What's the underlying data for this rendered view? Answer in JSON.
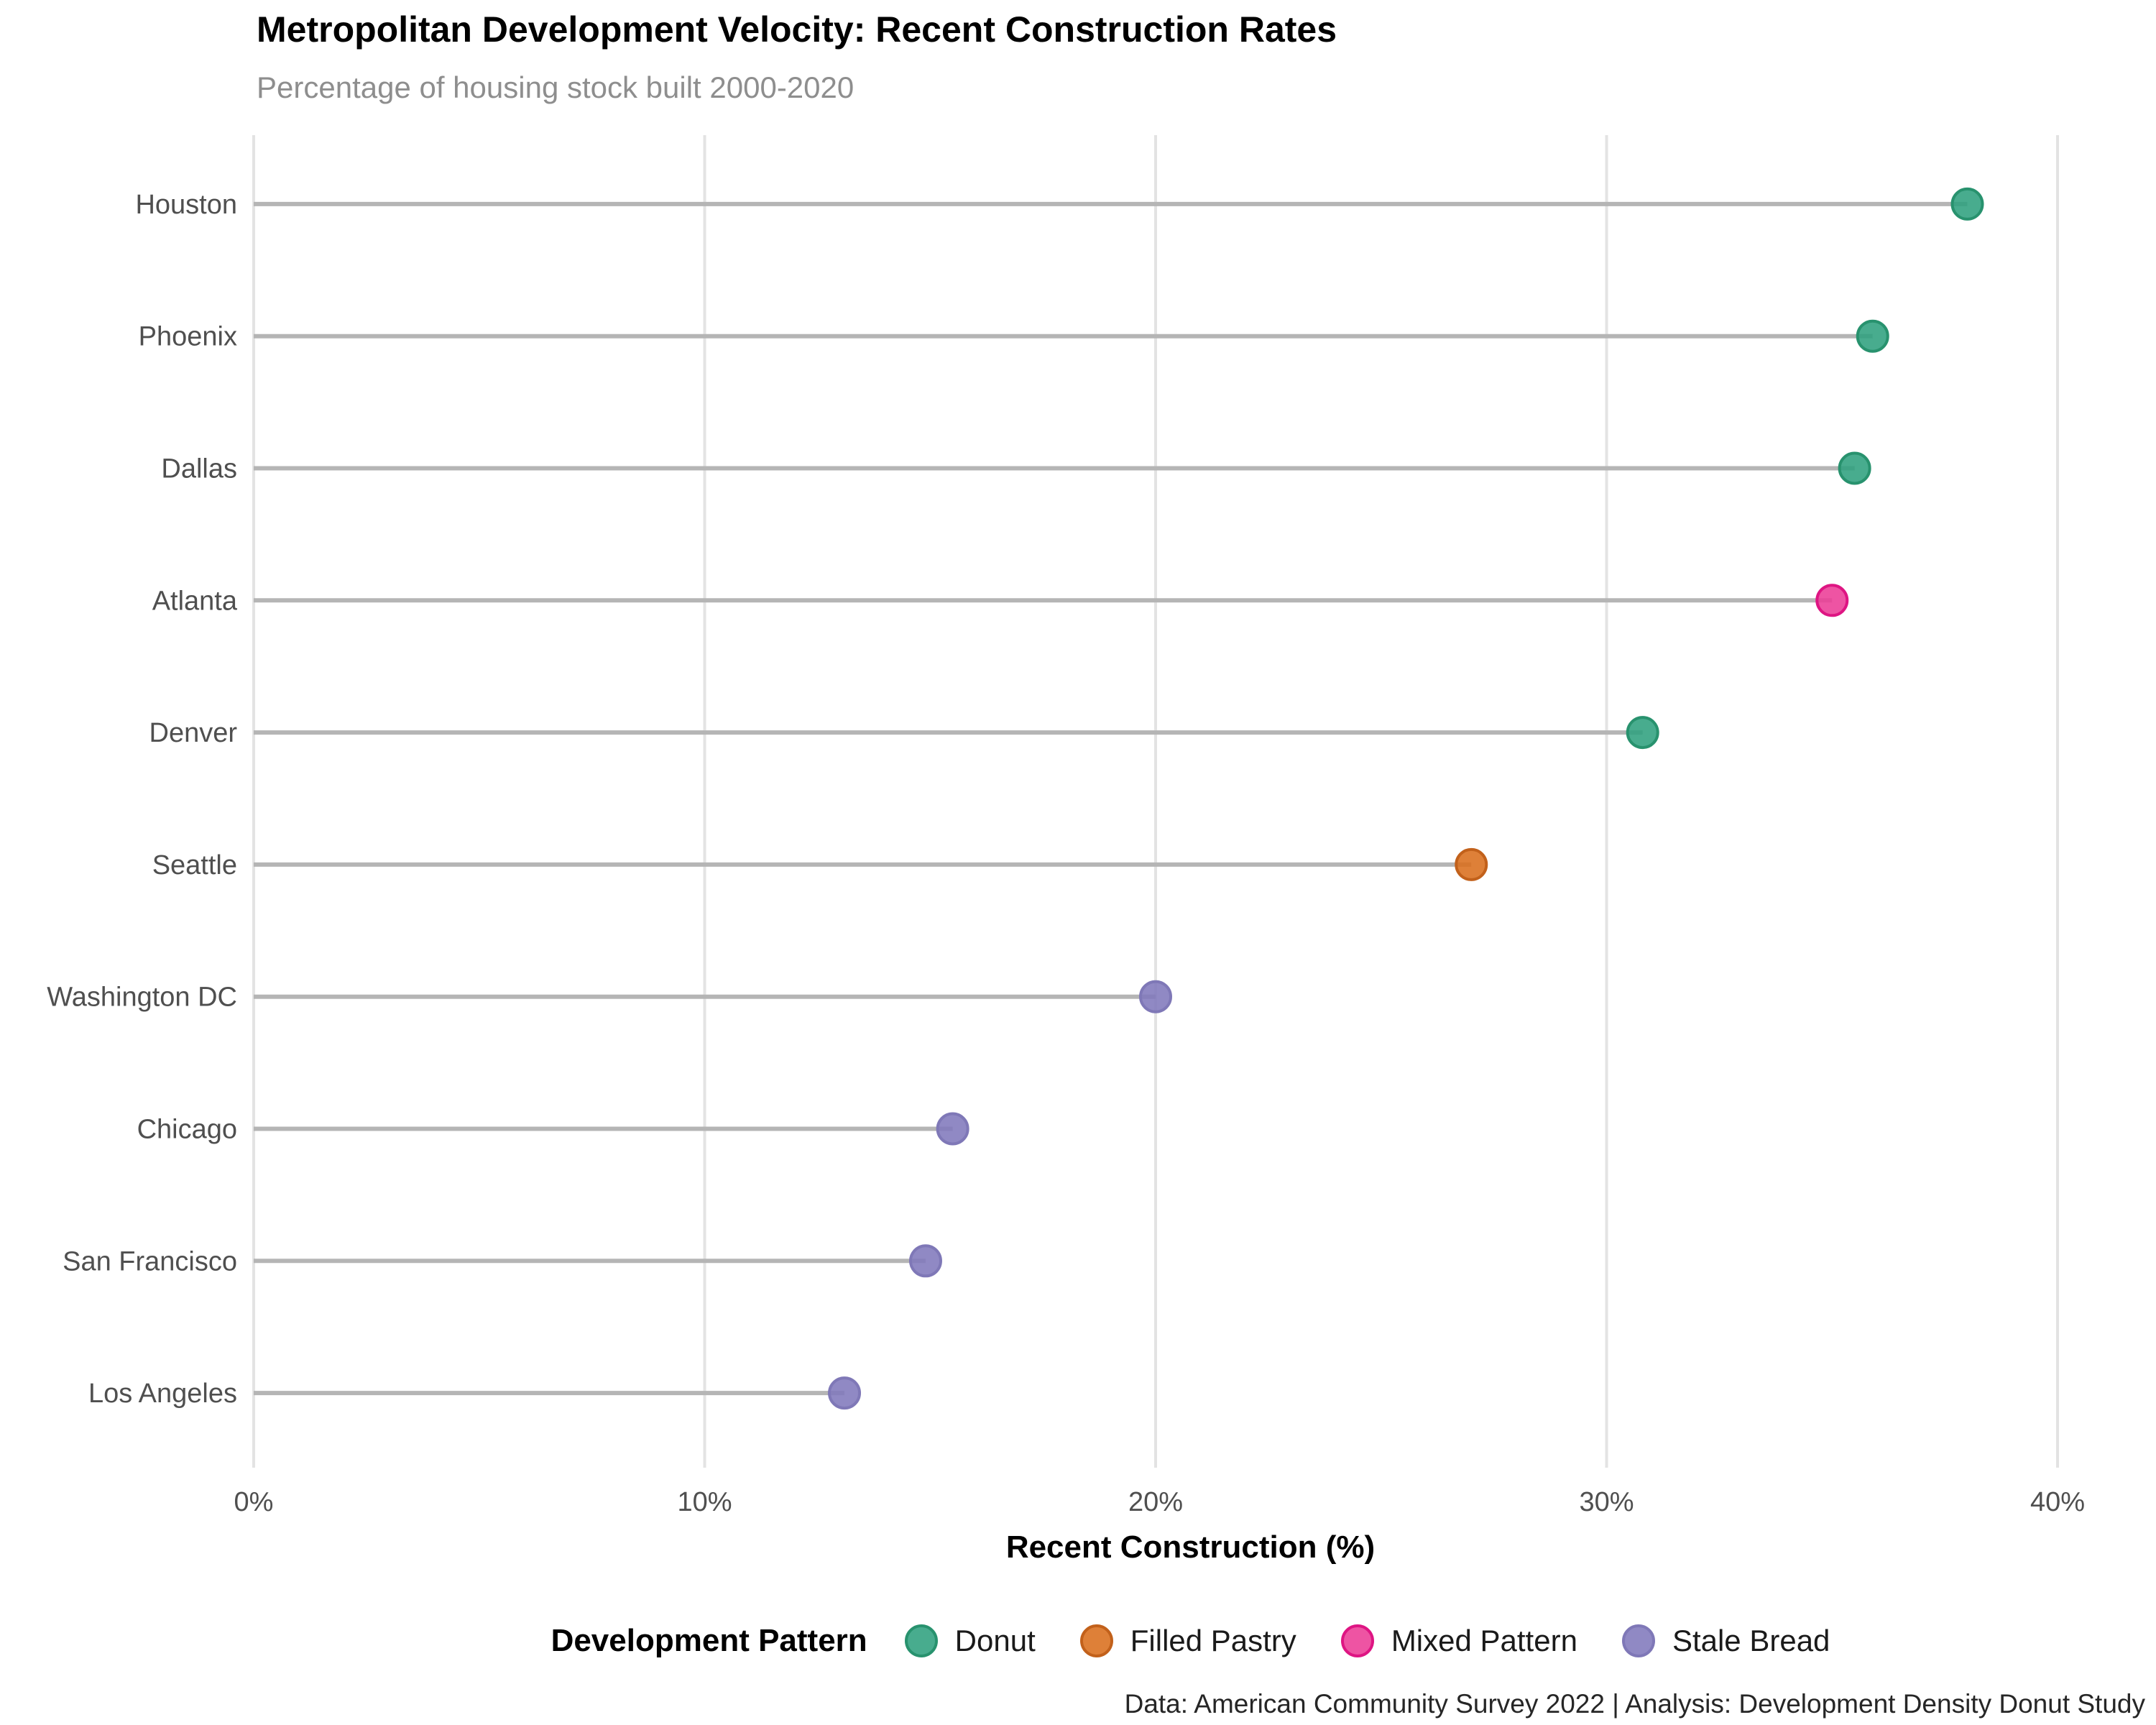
{
  "header": {
    "title": "Metropolitan Development Velocity: Recent Construction Rates",
    "subtitle": "Percentage of housing stock built 2000-2020"
  },
  "chart_data": {
    "type": "bar",
    "subtype": "horizontal-lollipop",
    "title": "Metropolitan Development Velocity: Recent Construction Rates",
    "subtitle": "Percentage of housing stock built 2000-2020",
    "categories": [
      "Houston",
      "Phoenix",
      "Dallas",
      "Atlanta",
      "Denver",
      "Seattle",
      "Washington DC",
      "Chicago",
      "San Francisco",
      "Los Angeles"
    ],
    "values": [
      38.0,
      35.9,
      35.5,
      35.0,
      30.8,
      27.0,
      20.0,
      15.5,
      14.9,
      13.1
    ],
    "groups": [
      "Donut",
      "Donut",
      "Donut",
      "Mixed Pattern",
      "Donut",
      "Filled Pastry",
      "Stale Bread",
      "Stale Bread",
      "Stale Bread",
      "Stale Bread"
    ],
    "xlabel": "Recent Construction (%)",
    "ylabel": "",
    "xlim": [
      0,
      40
    ],
    "xticks": [
      0,
      10,
      20,
      30,
      40
    ],
    "xtick_labels": [
      "0%",
      "10%",
      "20%",
      "30%",
      "40%"
    ],
    "grid": "vertical-only",
    "legend": {
      "title": "Development Pattern",
      "position": "bottom-center",
      "entries": [
        {
          "label": "Donut",
          "fill": "#2fa07e",
          "stroke": "#28926e"
        },
        {
          "label": "Filled Pastry",
          "fill": "#d96e1d",
          "stroke": "#c2611b"
        },
        {
          "label": "Mixed Pattern",
          "fill": "#ec3c96",
          "stroke": "#de1583"
        },
        {
          "label": "Stale Bread",
          "fill": "#8179bc",
          "stroke": "#7f78b7"
        }
      ]
    }
  },
  "caption": {
    "text": "Data: American Community Survey 2022 | Analysis: Development Density Donut Study"
  },
  "colors": {
    "background": "#ffffff",
    "title_text": "#000000",
    "subtitle_text": "#8e8e8e",
    "axis_text": "#4f4f4f",
    "gridline": "#e3e3e3",
    "stem": "#b5b5b5",
    "marker_opacity": "0.88"
  }
}
